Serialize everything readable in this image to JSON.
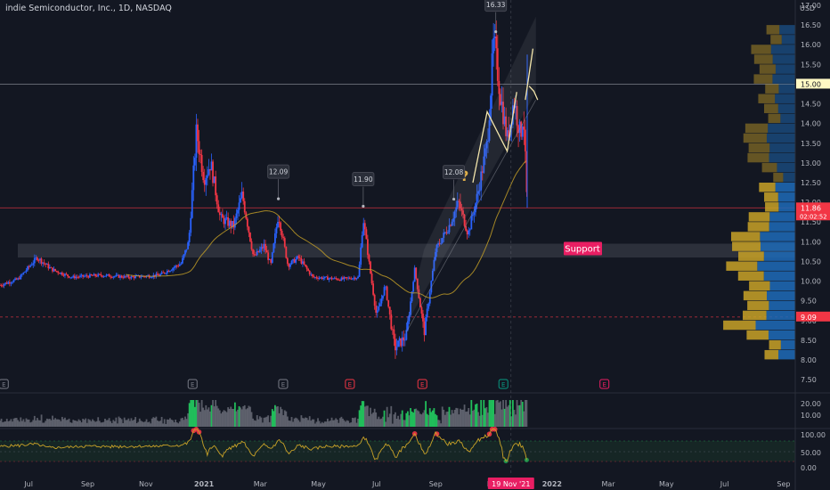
{
  "header": {
    "title": "indie Semiconductor, Inc., 1D, NASDAQ",
    "currency": "USD"
  },
  "chart_data": {
    "type": "candlestick",
    "y_ticks": [
      17.0,
      16.5,
      16.0,
      15.5,
      15.0,
      14.5,
      14.0,
      13.5,
      13.0,
      12.5,
      12.0,
      11.5,
      11.0,
      10.5,
      10.0,
      9.5,
      9.0,
      8.5,
      8.0,
      7.5
    ],
    "ylim": [
      7.4,
      17.3
    ],
    "x_ticks": [
      "Jul",
      "Sep",
      "Nov",
      "2021",
      "Mar",
      "May",
      "Jul",
      "Sep",
      "Nov",
      "2022",
      "Mar",
      "May",
      "Jul",
      "Sep"
    ],
    "x_tick_dates": [
      "2020-07-01",
      "2020-09-01",
      "2020-11-01",
      "2021-01-01",
      "2021-03-01",
      "2021-05-01",
      "2021-07-01",
      "2021-09-01",
      "2021-11-01",
      "2022-01-01",
      "2022-03-01",
      "2022-05-01",
      "2022-07-01",
      "2022-09-01"
    ],
    "price_path": [
      [
        "2020-06-01",
        9.9
      ],
      [
        "2020-06-20",
        10.05
      ],
      [
        "2020-07-10",
        10.6
      ],
      [
        "2020-07-25",
        10.3
      ],
      [
        "2020-08-15",
        10.1
      ],
      [
        "2020-09-15",
        10.15
      ],
      [
        "2020-10-15",
        10.1
      ],
      [
        "2020-11-15",
        10.15
      ],
      [
        "2020-12-08",
        10.45
      ],
      [
        "2020-12-16",
        11.0
      ],
      [
        "2020-12-24",
        13.8
      ],
      [
        "2021-01-01",
        12.6
      ],
      [
        "2021-01-08",
        13.0
      ],
      [
        "2021-01-18",
        11.6
      ],
      [
        "2021-02-01",
        11.4
      ],
      [
        "2021-02-10",
        12.2
      ],
      [
        "2021-02-22",
        10.6
      ],
      [
        "2021-03-05",
        10.9
      ],
      [
        "2021-03-12",
        10.4
      ],
      [
        "2021-03-20",
        11.7
      ],
      [
        "2021-03-30",
        10.4
      ],
      [
        "2021-04-10",
        10.6
      ],
      [
        "2021-04-25",
        10.1
      ],
      [
        "2021-05-25",
        10.05
      ],
      [
        "2021-06-12",
        10.1
      ],
      [
        "2021-06-17",
        11.6
      ],
      [
        "2021-06-24",
        10.3
      ],
      [
        "2021-07-01",
        9.1
      ],
      [
        "2021-07-10",
        9.9
      ],
      [
        "2021-07-20",
        8.3
      ],
      [
        "2021-08-01",
        8.6
      ],
      [
        "2021-08-10",
        10.3
      ],
      [
        "2021-08-20",
        8.7
      ],
      [
        "2021-09-01",
        10.8
      ],
      [
        "2021-09-15",
        11.4
      ],
      [
        "2021-09-25",
        12.0
      ],
      [
        "2021-10-05",
        11.2
      ],
      [
        "2021-10-15",
        12.2
      ],
      [
        "2021-10-25",
        13.5
      ],
      [
        "2021-11-01",
        16.1
      ],
      [
        "2021-11-08",
        14.7
      ],
      [
        "2021-11-15",
        13.6
      ],
      [
        "2021-11-22",
        14.6
      ],
      [
        "2021-11-29",
        13.7
      ],
      [
        "2021-12-02",
        14.3
      ],
      [
        "2021-12-06",
        11.86
      ]
    ],
    "price_labels": [
      {
        "date": "2021-03-20",
        "value": "12.09"
      },
      {
        "date": "2021-06-17",
        "value": "11.90"
      },
      {
        "date": "2021-09-20",
        "value": "12.08"
      },
      {
        "date": "2021-11-03",
        "value": "16.33"
      }
    ],
    "earnings_markers": [
      {
        "date": "2020-06-05",
        "label": "E",
        "color": "#787b86"
      },
      {
        "date": "2020-12-20",
        "label": "E",
        "color": "#787b86"
      },
      {
        "date": "2021-03-25",
        "label": "E",
        "color": "#787b86"
      },
      {
        "date": "2021-06-03",
        "label": "E",
        "color": "#f23645"
      },
      {
        "date": "2021-08-18",
        "label": "E",
        "color": "#f23645"
      },
      {
        "date": "2021-11-11",
        "label": "E",
        "color": "#089981"
      },
      {
        "date": "2022-02-25",
        "label": "E",
        "color": "#e91e63"
      }
    ],
    "support_zone": {
      "low": 10.6,
      "high": 10.95,
      "label": "Support"
    },
    "annotation_question": "?",
    "horizontal_lines": [
      {
        "value": 15.0,
        "color": "#9598a1",
        "style": "solid"
      },
      {
        "value": 11.86,
        "color": "#f23645",
        "style": "solid"
      },
      {
        "value": 9.09,
        "color": "#f23645",
        "style": "dashed"
      }
    ],
    "price_badges": [
      {
        "value": 15.0,
        "text": "15.00",
        "bg": "#fff9c4",
        "fg": "#131722"
      },
      {
        "value": 11.86,
        "text": "11.86",
        "sub": "02:02:52",
        "bg": "#f23645",
        "fg": "#ffffff"
      },
      {
        "value": 9.09,
        "text": "9.09",
        "bg": "#f23645",
        "fg": "#ffffff"
      }
    ],
    "date_badge": {
      "date": "2021-11-19",
      "text": "19 Nov '21"
    },
    "volume_profile_note": "blue = buy volume, gold = sell volume (right side histogram)",
    "volume_axis": [
      "20.00",
      "10.00"
    ],
    "rsi_axis": [
      "100.00",
      "50.00",
      "0.00"
    ],
    "colors": {
      "up": "#2962ff",
      "down": "#f23645",
      "ma": "#c9a227",
      "profile_buy": "#1e6bb8",
      "profile_sell": "#c9a227",
      "rsi": "#c9a227",
      "volume_green": "#22c55e"
    }
  }
}
